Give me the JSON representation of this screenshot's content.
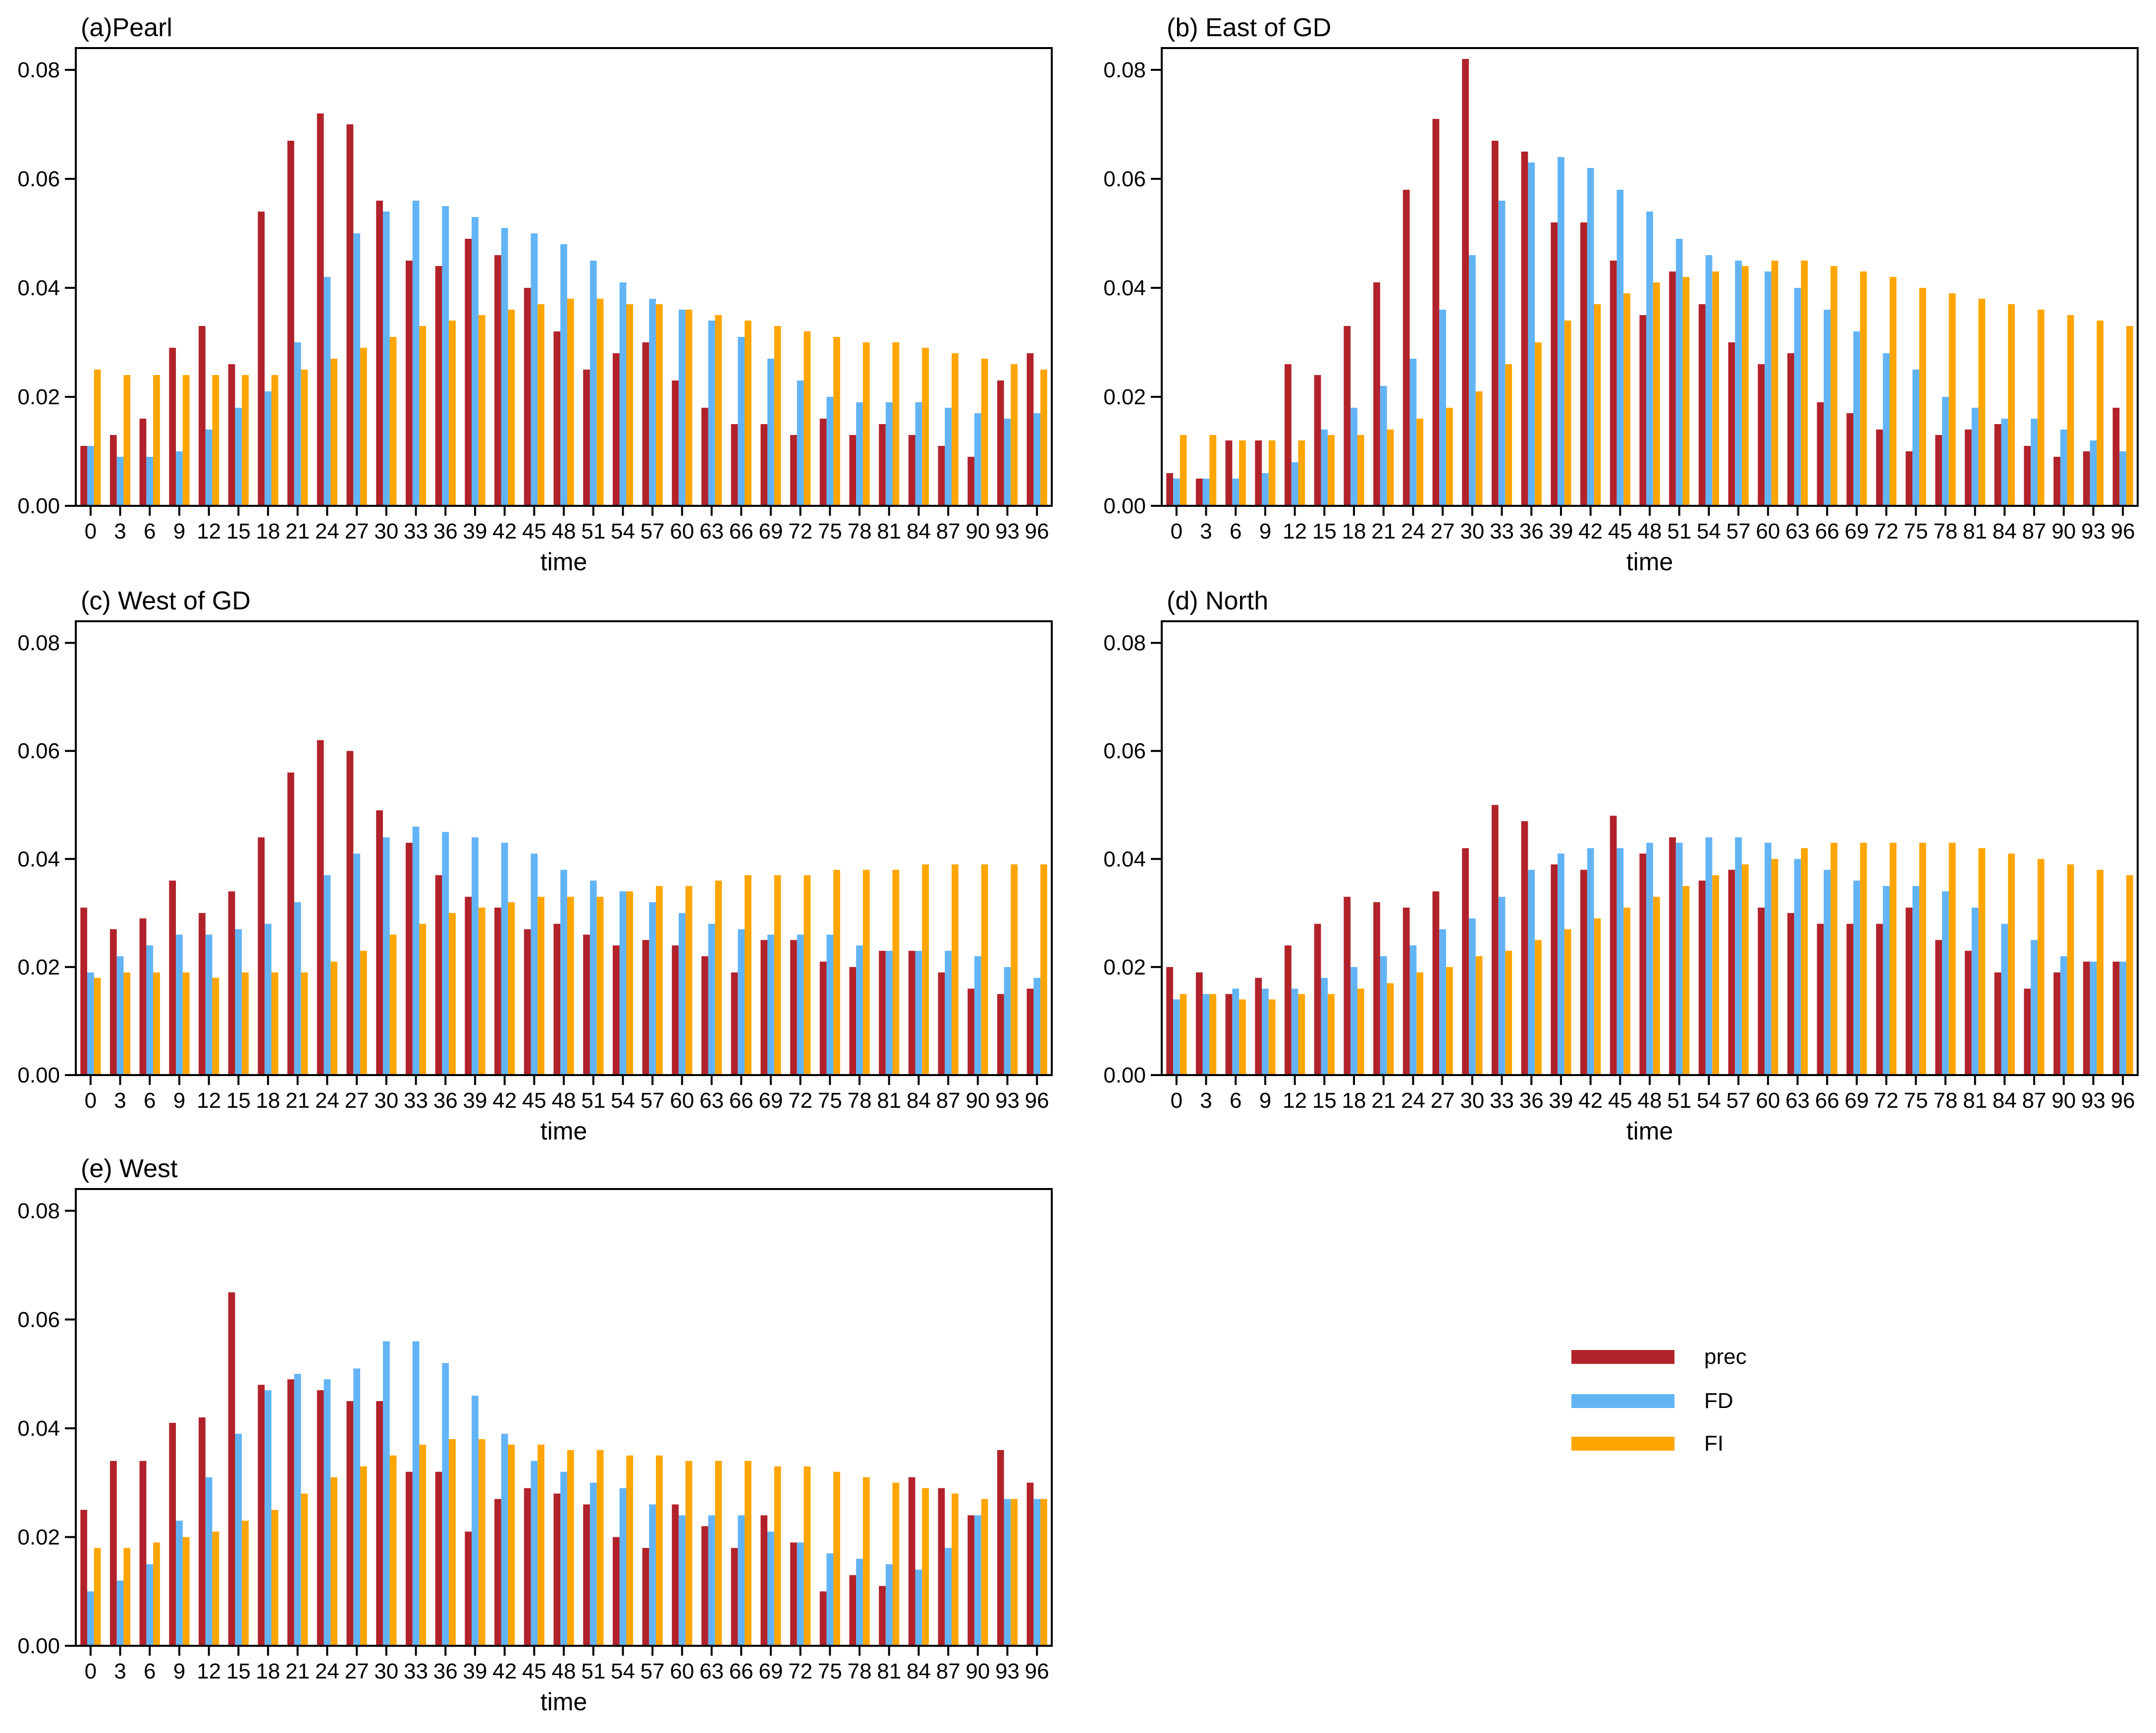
{
  "chart_data": [
    {
      "type": "bar",
      "title": "(a)Pearl",
      "xlabel": "time",
      "categories": [
        0,
        3,
        6,
        9,
        12,
        15,
        18,
        21,
        24,
        27,
        30,
        33,
        36,
        39,
        42,
        45,
        48,
        51,
        54,
        57,
        60,
        63,
        66,
        69,
        72,
        75,
        78,
        81,
        84,
        87,
        90,
        93,
        96
      ],
      "ylim": [
        0,
        0.084
      ],
      "yticks": [
        {
          "value": 0,
          "label": "0.00"
        },
        0.02,
        0.04,
        0.06,
        0.08
      ],
      "series": [
        {
          "name": "prec",
          "color": "#b2222a",
          "values": [
            0.011,
            0.013,
            0.016,
            0.029,
            0.033,
            0.026,
            0.054,
            0.067,
            0.072,
            0.07,
            0.056,
            0.045,
            0.044,
            0.049,
            0.046,
            0.04,
            0.032,
            0.025,
            0.028,
            0.03,
            0.023,
            0.018,
            0.015,
            0.015,
            0.013,
            0.016,
            0.013,
            0.015,
            0.013,
            0.011,
            0.009,
            0.023,
            0.028
          ]
        },
        {
          "name": "FD",
          "color": "#63b4f5",
          "values": [
            0.011,
            0.009,
            0.009,
            0.01,
            0.014,
            0.018,
            0.021,
            0.03,
            0.042,
            0.05,
            0.054,
            0.056,
            0.055,
            0.053,
            0.051,
            0.05,
            0.048,
            0.045,
            0.041,
            0.038,
            0.036,
            0.034,
            0.031,
            0.027,
            0.023,
            0.02,
            0.019,
            0.019,
            0.019,
            0.018,
            0.017,
            0.016,
            0.017
          ]
        },
        {
          "name": "FI",
          "color": "#ffa500",
          "values": [
            0.025,
            0.024,
            0.024,
            0.024,
            0.024,
            0.024,
            0.024,
            0.025,
            0.027,
            0.029,
            0.031,
            0.033,
            0.034,
            0.035,
            0.036,
            0.037,
            0.038,
            0.038,
            0.037,
            0.037,
            0.036,
            0.035,
            0.034,
            0.033,
            0.032,
            0.031,
            0.03,
            0.03,
            0.029,
            0.028,
            0.027,
            0.026,
            0.025
          ]
        }
      ]
    },
    {
      "type": "bar",
      "title": "(b) East of GD",
      "xlabel": "time",
      "categories": [
        0,
        3,
        6,
        9,
        12,
        15,
        18,
        21,
        24,
        27,
        30,
        33,
        36,
        39,
        42,
        45,
        48,
        51,
        54,
        57,
        60,
        63,
        66,
        69,
        72,
        75,
        78,
        81,
        84,
        87,
        90,
        93,
        96
      ],
      "ylim": [
        0,
        0.084
      ],
      "yticks": [
        {
          "value": 0,
          "label": "0.00"
        },
        0.02,
        0.04,
        0.06,
        0.08
      ],
      "series": [
        {
          "name": "prec",
          "color": "#b2222a",
          "values": [
            0.006,
            0.005,
            0.012,
            0.012,
            0.026,
            0.024,
            0.033,
            0.041,
            0.058,
            0.071,
            0.082,
            0.067,
            0.065,
            0.052,
            0.052,
            0.045,
            0.035,
            0.043,
            0.037,
            0.03,
            0.026,
            0.028,
            0.019,
            0.017,
            0.014,
            0.01,
            0.013,
            0.014,
            0.015,
            0.011,
            0.009,
            0.01,
            0.018
          ]
        },
        {
          "name": "FD",
          "color": "#63b4f5",
          "values": [
            0.005,
            0.005,
            0.005,
            0.006,
            0.008,
            0.014,
            0.018,
            0.022,
            0.027,
            0.036,
            0.046,
            0.056,
            0.063,
            0.064,
            0.062,
            0.058,
            0.054,
            0.049,
            0.046,
            0.045,
            0.043,
            0.04,
            0.036,
            0.032,
            0.028,
            0.025,
            0.02,
            0.018,
            0.016,
            0.016,
            0.014,
            0.012,
            0.01
          ]
        },
        {
          "name": "FI",
          "color": "#ffa500",
          "values": [
            0.013,
            0.013,
            0.012,
            0.012,
            0.012,
            0.013,
            0.013,
            0.014,
            0.016,
            0.018,
            0.021,
            0.026,
            0.03,
            0.034,
            0.037,
            0.039,
            0.041,
            0.042,
            0.043,
            0.044,
            0.045,
            0.045,
            0.044,
            0.043,
            0.042,
            0.04,
            0.039,
            0.038,
            0.037,
            0.036,
            0.035,
            0.034,
            0.033
          ]
        }
      ]
    },
    {
      "type": "bar",
      "title": "(c) West of GD",
      "xlabel": "time",
      "categories": [
        0,
        3,
        6,
        9,
        12,
        15,
        18,
        21,
        24,
        27,
        30,
        33,
        36,
        39,
        42,
        45,
        48,
        51,
        54,
        57,
        60,
        63,
        66,
        69,
        72,
        75,
        78,
        81,
        84,
        87,
        90,
        93,
        96
      ],
      "ylim": [
        0,
        0.084
      ],
      "yticks": [
        {
          "value": 0,
          "label": "0.00"
        },
        0.02,
        0.04,
        0.06,
        0.08
      ],
      "series": [
        {
          "name": "prec",
          "color": "#b2222a",
          "values": [
            0.031,
            0.027,
            0.029,
            0.036,
            0.03,
            0.034,
            0.044,
            0.056,
            0.062,
            0.06,
            0.049,
            0.043,
            0.037,
            0.033,
            0.031,
            0.027,
            0.028,
            0.026,
            0.024,
            0.025,
            0.024,
            0.022,
            0.019,
            0.025,
            0.025,
            0.021,
            0.02,
            0.023,
            0.023,
            0.019,
            0.016,
            0.015,
            0.016
          ]
        },
        {
          "name": "FD",
          "color": "#63b4f5",
          "values": [
            0.019,
            0.022,
            0.024,
            0.026,
            0.026,
            0.027,
            0.028,
            0.032,
            0.037,
            0.041,
            0.044,
            0.046,
            0.045,
            0.044,
            0.043,
            0.041,
            0.038,
            0.036,
            0.034,
            0.032,
            0.03,
            0.028,
            0.027,
            0.026,
            0.026,
            0.026,
            0.024,
            0.023,
            0.023,
            0.023,
            0.022,
            0.02,
            0.018
          ]
        },
        {
          "name": "FI",
          "color": "#ffa500",
          "values": [
            0.018,
            0.019,
            0.019,
            0.019,
            0.018,
            0.019,
            0.019,
            0.019,
            0.021,
            0.023,
            0.026,
            0.028,
            0.03,
            0.031,
            0.032,
            0.033,
            0.033,
            0.033,
            0.034,
            0.035,
            0.035,
            0.036,
            0.037,
            0.037,
            0.037,
            0.038,
            0.038,
            0.038,
            0.039,
            0.039,
            0.039,
            0.039,
            0.039
          ]
        }
      ]
    },
    {
      "type": "bar",
      "title": "(d) North",
      "xlabel": "time",
      "categories": [
        0,
        3,
        6,
        9,
        12,
        15,
        18,
        21,
        24,
        27,
        30,
        33,
        36,
        39,
        42,
        45,
        48,
        51,
        54,
        57,
        60,
        63,
        66,
        69,
        72,
        75,
        78,
        81,
        84,
        87,
        90,
        93,
        96
      ],
      "ylim": [
        0,
        0.084
      ],
      "yticks": [
        {
          "value": 0,
          "label": "0.00"
        },
        0.02,
        0.04,
        0.06,
        0.08
      ],
      "series": [
        {
          "name": "prec",
          "color": "#b2222a",
          "values": [
            0.02,
            0.019,
            0.015,
            0.018,
            0.024,
            0.028,
            0.033,
            0.032,
            0.031,
            0.034,
            0.042,
            0.05,
            0.047,
            0.039,
            0.038,
            0.048,
            0.041,
            0.044,
            0.036,
            0.038,
            0.031,
            0.03,
            0.028,
            0.028,
            0.028,
            0.031,
            0.025,
            0.023,
            0.019,
            0.016,
            0.019,
            0.021,
            0.021
          ]
        },
        {
          "name": "FD",
          "color": "#63b4f5",
          "values": [
            0.014,
            0.015,
            0.016,
            0.016,
            0.016,
            0.018,
            0.02,
            0.022,
            0.024,
            0.027,
            0.029,
            0.033,
            0.038,
            0.041,
            0.042,
            0.042,
            0.043,
            0.043,
            0.044,
            0.044,
            0.043,
            0.04,
            0.038,
            0.036,
            0.035,
            0.035,
            0.034,
            0.031,
            0.028,
            0.025,
            0.022,
            0.021,
            0.021
          ]
        },
        {
          "name": "FI",
          "color": "#ffa500",
          "values": [
            0.015,
            0.015,
            0.014,
            0.014,
            0.015,
            0.015,
            0.016,
            0.017,
            0.019,
            0.02,
            0.022,
            0.023,
            0.025,
            0.027,
            0.029,
            0.031,
            0.033,
            0.035,
            0.037,
            0.039,
            0.04,
            0.042,
            0.043,
            0.043,
            0.043,
            0.043,
            0.043,
            0.042,
            0.041,
            0.04,
            0.039,
            0.038,
            0.037
          ]
        }
      ]
    },
    {
      "type": "bar",
      "title": "(e) West",
      "xlabel": "time",
      "categories": [
        0,
        3,
        6,
        9,
        12,
        15,
        18,
        21,
        24,
        27,
        30,
        33,
        36,
        39,
        42,
        45,
        48,
        51,
        54,
        57,
        60,
        63,
        66,
        69,
        72,
        75,
        78,
        81,
        84,
        87,
        90,
        93,
        96
      ],
      "ylim": [
        0,
        0.084
      ],
      "yticks": [
        {
          "value": 0,
          "label": "0.00"
        },
        0.02,
        0.04,
        0.06,
        0.08
      ],
      "series": [
        {
          "name": "prec",
          "color": "#b2222a",
          "values": [
            0.025,
            0.034,
            0.034,
            0.041,
            0.042,
            0.065,
            0.048,
            0.049,
            0.047,
            0.045,
            0.045,
            0.032,
            0.032,
            0.021,
            0.027,
            0.029,
            0.028,
            0.026,
            0.02,
            0.018,
            0.026,
            0.022,
            0.018,
            0.024,
            0.019,
            0.01,
            0.013,
            0.011,
            0.031,
            0.029,
            0.024,
            0.036,
            0.03
          ]
        },
        {
          "name": "FD",
          "color": "#63b4f5",
          "values": [
            0.01,
            0.012,
            0.015,
            0.023,
            0.031,
            0.039,
            0.047,
            0.05,
            0.049,
            0.051,
            0.056,
            0.056,
            0.052,
            0.046,
            0.039,
            0.034,
            0.032,
            0.03,
            0.029,
            0.026,
            0.024,
            0.024,
            0.024,
            0.021,
            0.019,
            0.017,
            0.016,
            0.015,
            0.014,
            0.018,
            0.024,
            0.027,
            0.027
          ]
        },
        {
          "name": "FI",
          "color": "#ffa500",
          "values": [
            0.018,
            0.018,
            0.019,
            0.02,
            0.021,
            0.023,
            0.025,
            0.028,
            0.031,
            0.033,
            0.035,
            0.037,
            0.038,
            0.038,
            0.037,
            0.037,
            0.036,
            0.036,
            0.035,
            0.035,
            0.034,
            0.034,
            0.034,
            0.033,
            0.033,
            0.032,
            0.031,
            0.03,
            0.029,
            0.028,
            0.027,
            0.027,
            0.027
          ]
        }
      ]
    }
  ]
}
